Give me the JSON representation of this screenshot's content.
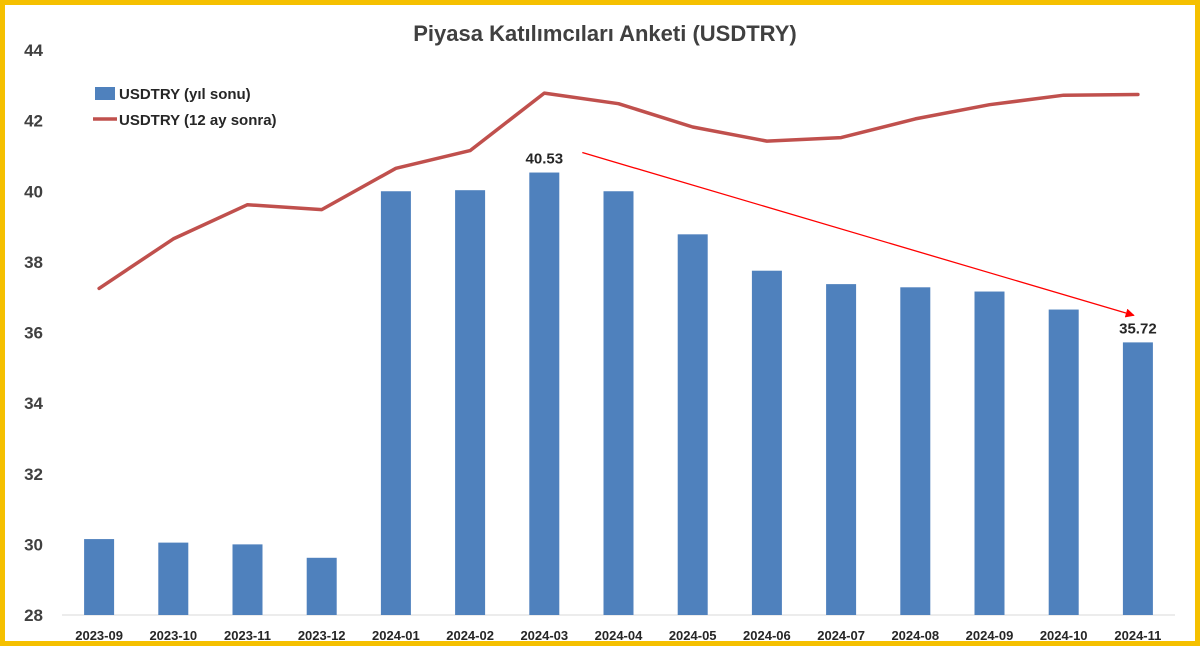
{
  "chart_data": {
    "type": "bar",
    "title": "Piyasa Katılımcıları Anketi (USDTRY)",
    "categories": [
      "2023-09",
      "2023-10",
      "2023-11",
      "2023-12",
      "2024-01",
      "2024-02",
      "2024-03",
      "2024-04",
      "2024-05",
      "2024-06",
      "2024-07",
      "2024-08",
      "2024-09",
      "2024-10",
      "2024-11"
    ],
    "series": [
      {
        "name": "USDTRY (yıl sonu)",
        "type": "bar",
        "color": "#4f81bd",
        "values": [
          30.15,
          30.05,
          30.0,
          29.62,
          40.0,
          40.03,
          40.53,
          40.0,
          38.78,
          37.75,
          37.37,
          37.28,
          37.16,
          36.65,
          35.72
        ]
      },
      {
        "name": "USDTRY (12 ay sonra)",
        "type": "line",
        "color": "#c0504d",
        "values": [
          37.25,
          38.65,
          39.62,
          39.48,
          40.65,
          41.15,
          42.78,
          42.48,
          41.82,
          41.42,
          41.52,
          42.05,
          42.45,
          42.72,
          42.74
        ]
      }
    ],
    "ylim": [
      28,
      44
    ],
    "yticks": [
      28,
      30,
      32,
      34,
      36,
      38,
      40,
      42,
      44
    ],
    "xlabel": "",
    "ylabel": "",
    "grid": false,
    "legend": "top-left",
    "annotations": [
      {
        "text": "40.53",
        "category": "2024-03",
        "value": 40.53
      },
      {
        "text": "35.72",
        "category": "2024-11",
        "value": 35.72
      }
    ],
    "trend_arrow": {
      "from": {
        "category": "2024-03",
        "value": 40.53
      },
      "to": {
        "category": "2024-11",
        "value": 35.72
      },
      "color": "#ff0000"
    }
  }
}
